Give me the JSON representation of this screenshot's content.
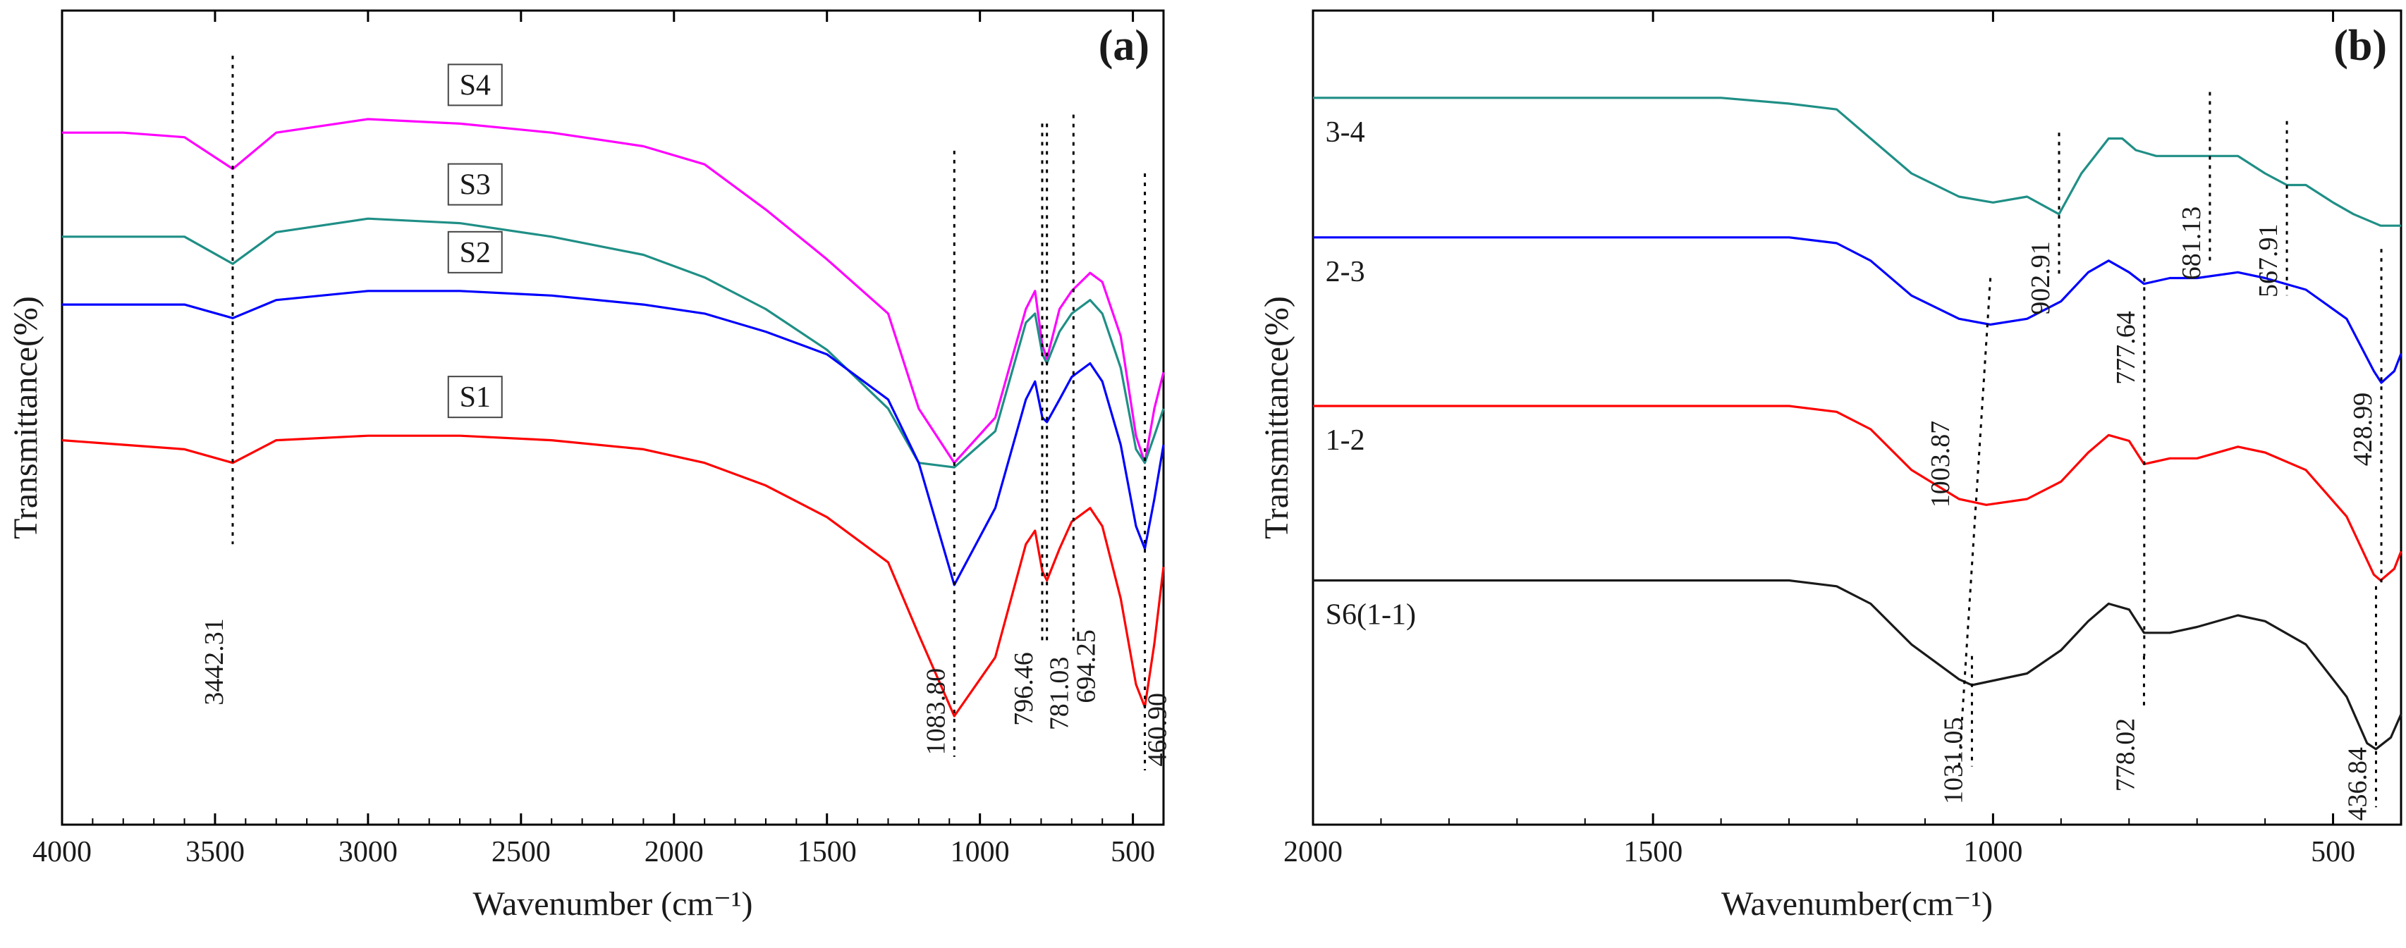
{
  "chart_data": [
    {
      "type": "line",
      "panel_label": "(a)",
      "xlabel": "Wavenumber (cm⁻¹)",
      "ylabel": "Transmittance(%)",
      "xlim": [
        4000,
        400
      ],
      "x_reversed": true,
      "x_ticks": [
        4000,
        3500,
        3000,
        2500,
        2000,
        1500,
        1000,
        500
      ],
      "y_ticks_shown": false,
      "label_style": "boxed",
      "series": [
        {
          "name": "S4",
          "color": "#ff00ff",
          "baseline": 8.2,
          "depth": 1.0,
          "label_at": 2650,
          "points": [
            [
              4000,
              8.3
            ],
            [
              3800,
              8.3
            ],
            [
              3600,
              8.2
            ],
            [
              3442,
              7.5
            ],
            [
              3300,
              8.3
            ],
            [
              3000,
              8.6
            ],
            [
              2700,
              8.5
            ],
            [
              2400,
              8.3
            ],
            [
              2100,
              8.0
            ],
            [
              1900,
              7.6
            ],
            [
              1700,
              6.6
            ],
            [
              1500,
              5.5
            ],
            [
              1300,
              4.3
            ],
            [
              1200,
              2.2
            ],
            [
              1083.8,
              1.0
            ],
            [
              950,
              2.0
            ],
            [
              850,
              4.4
            ],
            [
              820,
              4.8
            ],
            [
              796,
              3.6
            ],
            [
              781,
              3.3
            ],
            [
              740,
              4.4
            ],
            [
              700,
              4.8
            ],
            [
              640,
              5.2
            ],
            [
              600,
              5.0
            ],
            [
              540,
              3.8
            ],
            [
              490,
              1.6
            ],
            [
              461,
              1.0
            ],
            [
              430,
              2.2
            ],
            [
              400,
              3.0
            ]
          ]
        },
        {
          "name": "S3",
          "color": "#1f8f86",
          "baseline": 6.0,
          "depth": 2.4,
          "label_at": 2650,
          "points": [
            [
              4000,
              6.0
            ],
            [
              3800,
              6.0
            ],
            [
              3600,
              6.0
            ],
            [
              3442,
              5.4
            ],
            [
              3300,
              6.1
            ],
            [
              3000,
              6.4
            ],
            [
              2700,
              6.3
            ],
            [
              2400,
              6.0
            ],
            [
              2100,
              5.6
            ],
            [
              1900,
              5.1
            ],
            [
              1700,
              4.4
            ],
            [
              1500,
              3.5
            ],
            [
              1300,
              2.2
            ],
            [
              1200,
              1.0
            ],
            [
              1083.8,
              0.9
            ],
            [
              950,
              1.7
            ],
            [
              850,
              4.1
            ],
            [
              820,
              4.3
            ],
            [
              796,
              3.4
            ],
            [
              781,
              3.2
            ],
            [
              740,
              3.9
            ],
            [
              700,
              4.3
            ],
            [
              640,
              4.6
            ],
            [
              600,
              4.3
            ],
            [
              540,
              3.1
            ],
            [
              490,
              1.3
            ],
            [
              461,
              1.0
            ],
            [
              430,
              1.6
            ],
            [
              400,
              2.2
            ]
          ]
        },
        {
          "name": "S2",
          "color": "#0000ff",
          "baseline": 4.5,
          "depth": 3.8,
          "label_at": 2650,
          "points": [
            [
              4000,
              4.5
            ],
            [
              3800,
              4.5
            ],
            [
              3600,
              4.5
            ],
            [
              3442,
              4.2
            ],
            [
              3300,
              4.6
            ],
            [
              3000,
              4.8
            ],
            [
              2700,
              4.8
            ],
            [
              2400,
              4.7
            ],
            [
              2100,
              4.5
            ],
            [
              1900,
              4.3
            ],
            [
              1700,
              3.9
            ],
            [
              1500,
              3.4
            ],
            [
              1300,
              2.4
            ],
            [
              1200,
              1.0
            ],
            [
              1083.8,
              -1.7
            ],
            [
              950,
              0.0
            ],
            [
              850,
              2.4
            ],
            [
              820,
              2.8
            ],
            [
              796,
              2.0
            ],
            [
              781,
              1.9
            ],
            [
              740,
              2.4
            ],
            [
              700,
              2.9
            ],
            [
              640,
              3.2
            ],
            [
              600,
              2.8
            ],
            [
              540,
              1.4
            ],
            [
              490,
              -0.4
            ],
            [
              461,
              -0.9
            ],
            [
              430,
              0.2
            ],
            [
              400,
              1.4
            ]
          ]
        },
        {
          "name": "S1",
          "color": "#ff0000",
          "baseline": 1.5,
          "depth": 6.8,
          "label_at": 2650,
          "points": [
            [
              4000,
              1.5
            ],
            [
              3800,
              1.4
            ],
            [
              3600,
              1.3
            ],
            [
              3442,
              1.0
            ],
            [
              3300,
              1.5
            ],
            [
              3000,
              1.6
            ],
            [
              2700,
              1.6
            ],
            [
              2400,
              1.5
            ],
            [
              2100,
              1.3
            ],
            [
              1900,
              1.0
            ],
            [
              1700,
              0.5
            ],
            [
              1500,
              -0.2
            ],
            [
              1300,
              -1.2
            ],
            [
              1200,
              -2.8
            ],
            [
              1083.8,
              -4.6
            ],
            [
              950,
              -3.3
            ],
            [
              850,
              -0.8
            ],
            [
              820,
              -0.5
            ],
            [
              796,
              -1.4
            ],
            [
              781,
              -1.6
            ],
            [
              740,
              -0.9
            ],
            [
              700,
              -0.3
            ],
            [
              640,
              0.0
            ],
            [
              600,
              -0.4
            ],
            [
              540,
              -2.0
            ],
            [
              490,
              -3.9
            ],
            [
              461,
              -4.4
            ],
            [
              430,
              -3.0
            ],
            [
              400,
              -1.3
            ]
          ]
        }
      ],
      "peak_markers": [
        {
          "label": "3442.31",
          "x": 3442.31,
          "y_top": 10.0,
          "y_bottom": -0.8,
          "label_y": -3.4,
          "label_side": "left"
        },
        {
          "label": "1083.80",
          "x": 1083.8,
          "y_top": 7.9,
          "y_bottom": -5.5,
          "label_y": -4.5,
          "label_side": "left"
        },
        {
          "label": "796.46",
          "x": 796.46,
          "y_top": 8.5,
          "y_bottom": -3.0,
          "label_y": -4.0,
          "label_side": "left"
        },
        {
          "label": "781.03",
          "x": 781.03,
          "y_top": 8.5,
          "y_bottom": -3.0,
          "label_y": -4.1,
          "label_side": "right"
        },
        {
          "label": "694.25",
          "x": 694.25,
          "y_top": 8.7,
          "y_bottom": -3.0,
          "label_y": -3.5,
          "label_side": "right"
        },
        {
          "label": "460.90",
          "x": 460.9,
          "y_top": 7.4,
          "y_bottom": -5.8,
          "label_y": -4.9,
          "label_side": "right"
        }
      ],
      "ylim": [
        -7,
        11
      ]
    },
    {
      "type": "line",
      "panel_label": "(b)",
      "xlabel": "Wavenumber(cm⁻¹)",
      "ylabel": "Transmittance(%)",
      "xlim": [
        2000,
        400
      ],
      "x_reversed": true,
      "x_ticks": [
        2000,
        1500,
        1000,
        500
      ],
      "y_ticks_shown": false,
      "label_style": "plain",
      "series": [
        {
          "name": "3-4",
          "color": "#1f8f86",
          "label_at": 1990,
          "points": [
            [
              2000,
              9.0
            ],
            [
              1700,
              9.0
            ],
            [
              1400,
              9.0
            ],
            [
              1300,
              8.9
            ],
            [
              1230,
              8.8
            ],
            [
              1180,
              8.3
            ],
            [
              1120,
              7.7
            ],
            [
              1050,
              7.3
            ],
            [
              1000,
              7.2
            ],
            [
              950,
              7.3
            ],
            [
              903,
              7.0
            ],
            [
              870,
              7.7
            ],
            [
              830,
              8.3
            ],
            [
              810,
              8.3
            ],
            [
              790,
              8.1
            ],
            [
              760,
              8.0
            ],
            [
              720,
              8.0
            ],
            [
              681,
              8.0
            ],
            [
              640,
              8.0
            ],
            [
              600,
              7.7
            ],
            [
              568,
              7.5
            ],
            [
              540,
              7.5
            ],
            [
              500,
              7.2
            ],
            [
              470,
              7.0
            ],
            [
              430,
              6.8
            ],
            [
              400,
              6.8
            ]
          ]
        },
        {
          "name": "2-3",
          "color": "#0000ff",
          "label_at": 1990,
          "points": [
            [
              2000,
              6.6
            ],
            [
              1700,
              6.6
            ],
            [
              1400,
              6.6
            ],
            [
              1300,
              6.6
            ],
            [
              1230,
              6.5
            ],
            [
              1180,
              6.2
            ],
            [
              1120,
              5.6
            ],
            [
              1050,
              5.2
            ],
            [
              1004,
              5.1
            ],
            [
              950,
              5.2
            ],
            [
              900,
              5.5
            ],
            [
              860,
              6.0
            ],
            [
              830,
              6.2
            ],
            [
              800,
              6.0
            ],
            [
              778,
              5.8
            ],
            [
              740,
              5.9
            ],
            [
              700,
              5.9
            ],
            [
              640,
              6.0
            ],
            [
              600,
              5.9
            ],
            [
              540,
              5.7
            ],
            [
              480,
              5.2
            ],
            [
              440,
              4.3
            ],
            [
              429,
              4.1
            ],
            [
              410,
              4.3
            ],
            [
              400,
              4.6
            ]
          ]
        },
        {
          "name": "1-2",
          "color": "#ff0000",
          "label_at": 1990,
          "points": [
            [
              2000,
              3.7
            ],
            [
              1700,
              3.7
            ],
            [
              1400,
              3.7
            ],
            [
              1300,
              3.7
            ],
            [
              1230,
              3.6
            ],
            [
              1180,
              3.3
            ],
            [
              1120,
              2.6
            ],
            [
              1050,
              2.1
            ],
            [
              1010,
              2.0
            ],
            [
              950,
              2.1
            ],
            [
              900,
              2.4
            ],
            [
              860,
              2.9
            ],
            [
              830,
              3.2
            ],
            [
              800,
              3.1
            ],
            [
              778,
              2.7
            ],
            [
              740,
              2.8
            ],
            [
              700,
              2.8
            ],
            [
              640,
              3.0
            ],
            [
              600,
              2.9
            ],
            [
              540,
              2.6
            ],
            [
              480,
              1.8
            ],
            [
              440,
              0.8
            ],
            [
              430,
              0.7
            ],
            [
              410,
              0.9
            ],
            [
              400,
              1.2
            ]
          ]
        },
        {
          "name": "S6(1-1)",
          "color": "#1a1a1a",
          "label_at": 1990,
          "points": [
            [
              2000,
              0.7
            ],
            [
              1700,
              0.7
            ],
            [
              1400,
              0.7
            ],
            [
              1300,
              0.7
            ],
            [
              1230,
              0.6
            ],
            [
              1180,
              0.3
            ],
            [
              1120,
              -0.4
            ],
            [
              1050,
              -1.0
            ],
            [
              1031,
              -1.1
            ],
            [
              950,
              -0.9
            ],
            [
              900,
              -0.5
            ],
            [
              860,
              0.0
            ],
            [
              830,
              0.3
            ],
            [
              800,
              0.2
            ],
            [
              778,
              -0.2
            ],
            [
              740,
              -0.2
            ],
            [
              700,
              -0.1
            ],
            [
              640,
              0.1
            ],
            [
              600,
              0.0
            ],
            [
              540,
              -0.4
            ],
            [
              480,
              -1.3
            ],
            [
              450,
              -2.1
            ],
            [
              437,
              -2.2
            ],
            [
              415,
              -2.0
            ],
            [
              400,
              -1.6
            ]
          ]
        }
      ],
      "peak_markers": [
        {
          "label": "902.91",
          "x": 902.91,
          "x_end": 902.91,
          "y_top": 8.4,
          "y_bottom": 5.9,
          "label_y": 5.9,
          "label_side": "left"
        },
        {
          "label": "681.13",
          "x": 681.13,
          "x_end": 681.13,
          "y_top": 9.1,
          "y_bottom": 6.2,
          "label_y": 6.5,
          "label_side": "left"
        },
        {
          "label": "567.91",
          "x": 567.91,
          "x_end": 567.91,
          "y_top": 8.6,
          "y_bottom": 5.6,
          "label_y": 6.2,
          "label_side": "left"
        },
        {
          "label": "1003.87",
          "x": 1003.87,
          "x_end": 1050,
          "y_top": 5.9,
          "y_bottom": -2.5,
          "label_y": 2.7,
          "label_side": "left"
        },
        {
          "label": "777.64",
          "x": 777.64,
          "x_end": 777.64,
          "y_top": 5.9,
          "y_bottom": -0.6,
          "label_y": 4.7,
          "label_side": "left"
        },
        {
          "label": "1031.05",
          "x": 1031.05,
          "x_end": 1031.05,
          "y_top": -0.6,
          "y_bottom": -2.5,
          "label_y": -2.4,
          "label_side": "left"
        },
        {
          "label": "778.02",
          "x": 778.02,
          "x_end": 778.02,
          "y_top": -0.6,
          "y_bottom": -1.5,
          "label_y": -2.3,
          "label_side": "left"
        },
        {
          "label": "428.99",
          "x": 428.99,
          "x_end": 428.99,
          "y_top": 6.4,
          "y_bottom": 0.6,
          "label_y": 3.3,
          "label_side": "left"
        },
        {
          "label": "436.84",
          "x": 436.84,
          "x_end": 436.84,
          "y_top": 0.6,
          "y_bottom": -3.2,
          "label_y": -2.8,
          "label_side": "left"
        }
      ],
      "ylim": [
        -3.5,
        10.5
      ]
    }
  ]
}
